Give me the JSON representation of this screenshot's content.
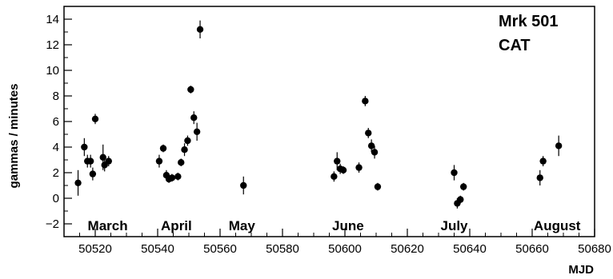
{
  "chart_data": {
    "type": "scatter",
    "title": "",
    "xlabel": "MJD",
    "ylabel": "gammas / minutes",
    "xlim": [
      50510,
      50680
    ],
    "ylim": [
      -3,
      15
    ],
    "x_ticks": [
      50520,
      50540,
      50560,
      50580,
      50600,
      50620,
      50640,
      50660,
      50680
    ],
    "y_ticks": [
      -2,
      0,
      2,
      4,
      6,
      8,
      10,
      12,
      14
    ],
    "grid": false,
    "legend": "none",
    "annotations": [
      "Mrk 501",
      "CAT"
    ],
    "month_labels": [
      {
        "text": "March",
        "x": 50524
      },
      {
        "text": "April",
        "x": 50546
      },
      {
        "text": "May",
        "x": 50567
      },
      {
        "text": "June",
        "x": 50601
      },
      {
        "text": "July",
        "x": 50635
      },
      {
        "text": "August",
        "x": 50668
      }
    ],
    "points": [
      {
        "x": 50514.5,
        "y": 1.2,
        "err": 1.0
      },
      {
        "x": 50516.5,
        "y": 4.0,
        "err": 0.7
      },
      {
        "x": 50517.5,
        "y": 2.9,
        "err": 0.5
      },
      {
        "x": 50518.5,
        "y": 2.9,
        "err": 0.5
      },
      {
        "x": 50519.2,
        "y": 1.9,
        "err": 0.5
      },
      {
        "x": 50520.0,
        "y": 6.2,
        "err": 0.4
      },
      {
        "x": 50522.5,
        "y": 3.2,
        "err": 1.0
      },
      {
        "x": 50523.0,
        "y": 2.6,
        "err": 0.5
      },
      {
        "x": 50524.3,
        "y": 2.9,
        "err": 0.4
      },
      {
        "x": 50540.5,
        "y": 2.9,
        "err": 0.5
      },
      {
        "x": 50541.8,
        "y": 3.9,
        "err": 0.3
      },
      {
        "x": 50542.8,
        "y": 1.8,
        "err": 0.4
      },
      {
        "x": 50543.6,
        "y": 1.5,
        "err": 0.3
      },
      {
        "x": 50544.6,
        "y": 1.6,
        "err": 0.3
      },
      {
        "x": 50546.5,
        "y": 1.7,
        "err": 0.3
      },
      {
        "x": 50547.5,
        "y": 2.8,
        "err": 0.3
      },
      {
        "x": 50548.6,
        "y": 3.8,
        "err": 0.5
      },
      {
        "x": 50549.6,
        "y": 4.5,
        "err": 0.4
      },
      {
        "x": 50550.6,
        "y": 8.5,
        "err": 0.3
      },
      {
        "x": 50551.6,
        "y": 6.3,
        "err": 0.5
      },
      {
        "x": 50552.6,
        "y": 5.2,
        "err": 0.7
      },
      {
        "x": 50553.6,
        "y": 13.2,
        "err": 0.7
      },
      {
        "x": 50567.5,
        "y": 1.0,
        "err": 0.7
      },
      {
        "x": 50596.5,
        "y": 1.7,
        "err": 0.4
      },
      {
        "x": 50597.5,
        "y": 2.9,
        "err": 0.7
      },
      {
        "x": 50598.5,
        "y": 2.3,
        "err": 0.4
      },
      {
        "x": 50599.5,
        "y": 2.2,
        "err": 0.3
      },
      {
        "x": 50604.5,
        "y": 2.4,
        "err": 0.4
      },
      {
        "x": 50606.5,
        "y": 7.6,
        "err": 0.4
      },
      {
        "x": 50607.5,
        "y": 5.1,
        "err": 0.4
      },
      {
        "x": 50608.5,
        "y": 4.1,
        "err": 0.5
      },
      {
        "x": 50609.5,
        "y": 3.6,
        "err": 0.5
      },
      {
        "x": 50610.5,
        "y": 0.9,
        "err": 0.3
      },
      {
        "x": 50635.0,
        "y": 2.0,
        "err": 0.6
      },
      {
        "x": 50636.0,
        "y": -0.4,
        "err": 0.4
      },
      {
        "x": 50637.0,
        "y": -0.1,
        "err": 0.3
      },
      {
        "x": 50638.0,
        "y": 0.9,
        "err": 0.3
      },
      {
        "x": 50662.5,
        "y": 1.6,
        "err": 0.6
      },
      {
        "x": 50663.5,
        "y": 2.9,
        "err": 0.4
      },
      {
        "x": 50668.5,
        "y": 4.1,
        "err": 0.8
      }
    ]
  }
}
